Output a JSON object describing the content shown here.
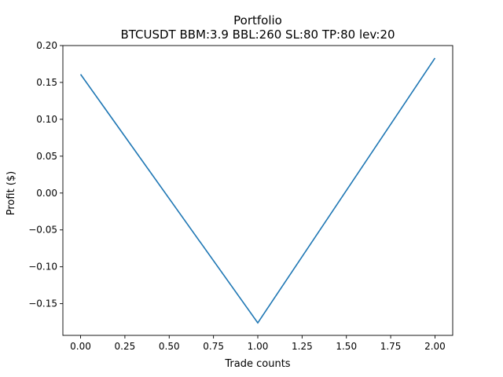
{
  "chart_data": {
    "type": "line",
    "title": "Portfolio",
    "subtitle": "BTCUSDT BBM:3.9 BBL:260 SL:80 TP:80 lev:20",
    "xlabel": "Trade counts",
    "ylabel": "Profit ($)",
    "x": [
      0,
      1,
      2
    ],
    "series": [
      {
        "values": [
          0.161,
          -0.176,
          0.183
        ],
        "color": "#1f77b4"
      }
    ],
    "xlim": [
      -0.1,
      2.1
    ],
    "ylim": [
      -0.193,
      0.2
    ],
    "xticks": [
      0.0,
      0.25,
      0.5,
      0.75,
      1.0,
      1.25,
      1.5,
      1.75,
      2.0
    ],
    "xtick_labels": [
      "0.00",
      "0.25",
      "0.50",
      "0.75",
      "1.00",
      "1.25",
      "1.50",
      "1.75",
      "2.00"
    ],
    "yticks": [
      -0.15,
      -0.1,
      -0.05,
      0.0,
      0.05,
      0.1,
      0.15,
      0.2
    ],
    "ytick_labels": [
      "−0.15",
      "−0.10",
      "−0.05",
      "0.00",
      "0.05",
      "0.10",
      "0.15",
      "0.20"
    ],
    "grid": false,
    "legend": "none"
  }
}
